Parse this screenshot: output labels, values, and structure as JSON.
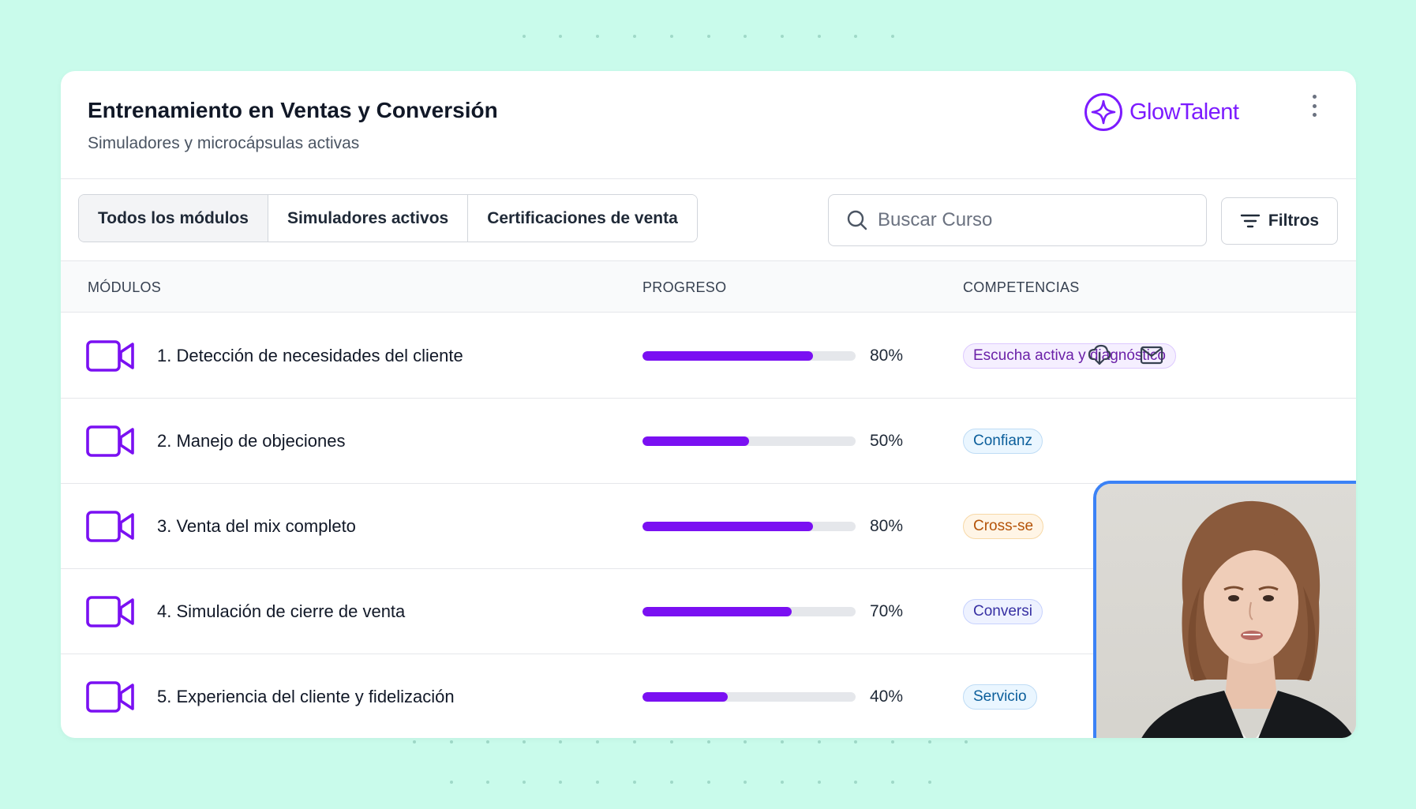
{
  "header": {
    "title": "Entrenamiento en Ventas y Conversión",
    "subtitle": "Simuladores y microcápsulas activas",
    "brand": "GlowTalent",
    "menu_icon": "kebab-vertical-icon"
  },
  "tabs": [
    {
      "label": "Todos los módulos",
      "active": true
    },
    {
      "label": "Simuladores activos",
      "active": false
    },
    {
      "label": "Certificaciones de venta",
      "active": false
    }
  ],
  "search": {
    "placeholder": "Buscar Curso",
    "value": ""
  },
  "filters": {
    "label": "Filtros",
    "icon": "filter-lines-icon"
  },
  "table": {
    "columns": {
      "modules": "MÓDULOS",
      "progress": "PROGRESO",
      "competencies": "COMPETENCIAS"
    },
    "rows": [
      {
        "name": "1. Detección de necesidades del cliente",
        "progress": 80,
        "progress_label": "80%",
        "competency": "Escucha activa y diagnóstico",
        "competency_color": "purple",
        "icon": "video-camera-icon"
      },
      {
        "name": "2. Manejo de objeciones",
        "progress": 50,
        "progress_label": "50%",
        "competency": "Confianz",
        "competency_color": "blue",
        "icon": "video-camera-icon"
      },
      {
        "name": "3. Venta del mix completo",
        "progress": 80,
        "progress_label": "80%",
        "competency": "Cross-se",
        "competency_color": "orange",
        "icon": "video-camera-icon"
      },
      {
        "name": "4. Simulación de cierre de venta",
        "progress": 70,
        "progress_label": "70%",
        "competency": "Conversi",
        "competency_color": "indigo",
        "icon": "video-camera-icon"
      },
      {
        "name": "5. Experiencia del cliente y fidelización",
        "progress": 40,
        "progress_label": "40%",
        "competency": "Servicio",
        "competency_color": "blue",
        "icon": "video-camera-icon"
      }
    ],
    "row_actions": [
      "download-cloud-icon",
      "mail-icon"
    ]
  },
  "video_call": {
    "controls": [
      "microphone-icon",
      "hang-up-icon",
      "camera-icon"
    ]
  },
  "colors": {
    "background": "#c9fbeb",
    "accent": "#7a10f2",
    "brand": "#7c1bff",
    "video_border": "#3b82f6",
    "hang_up": "#e53935"
  }
}
